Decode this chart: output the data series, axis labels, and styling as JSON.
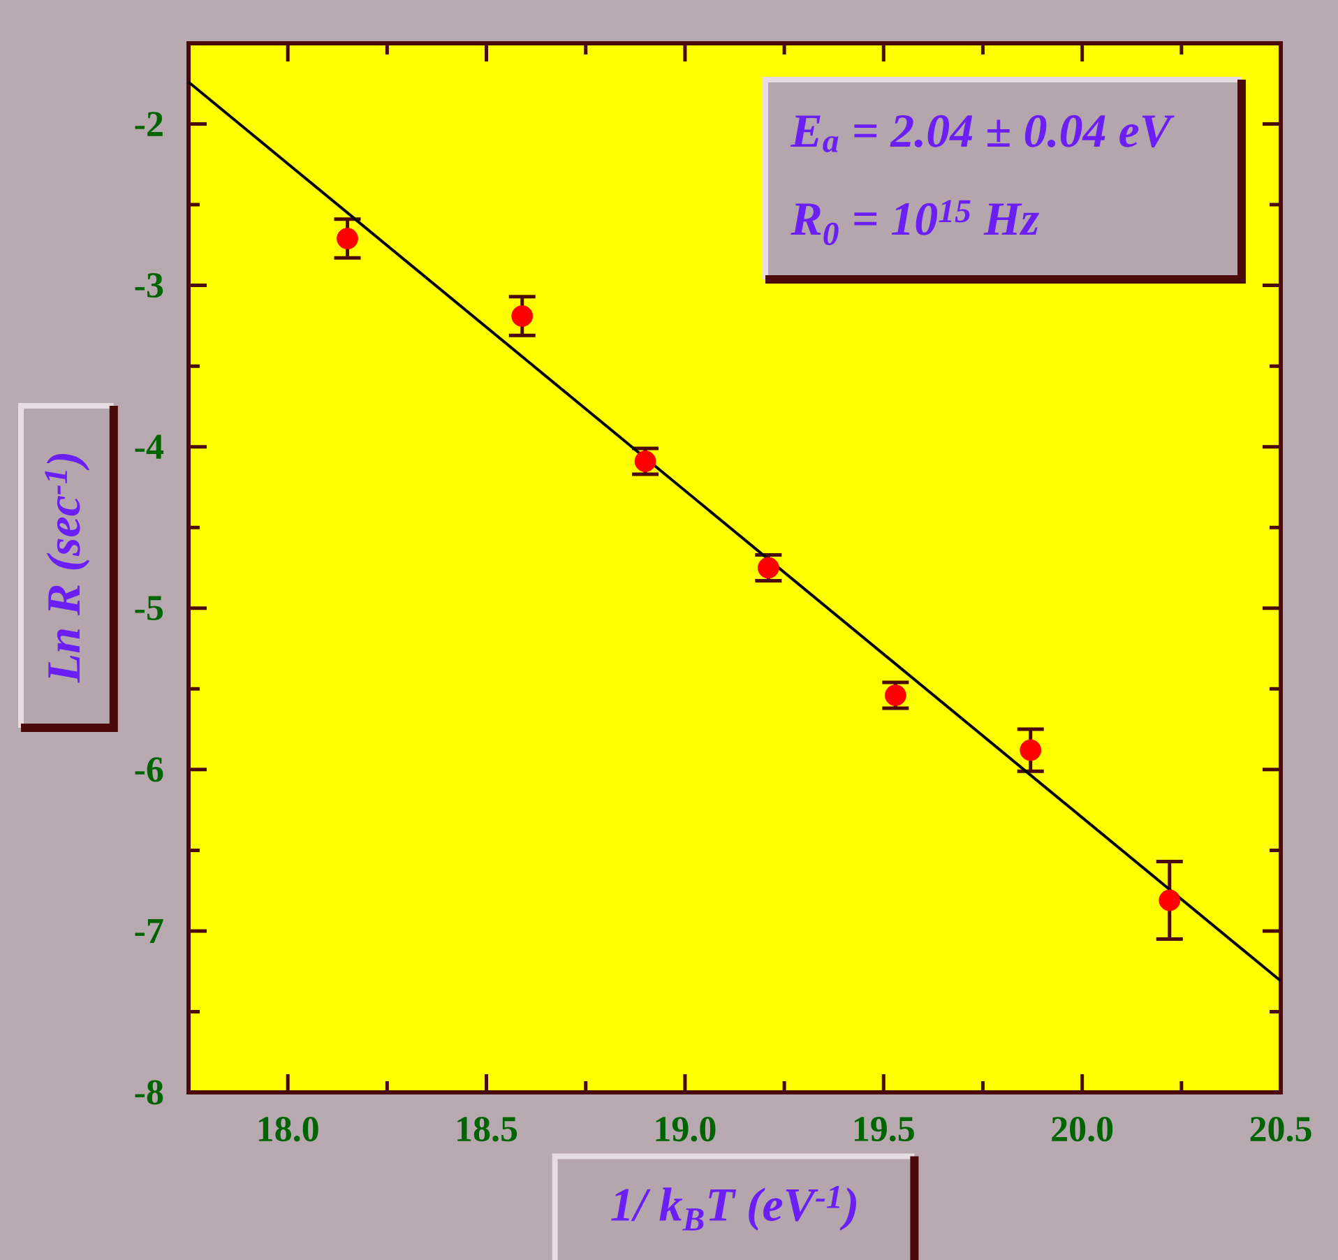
{
  "chart_data": {
    "type": "scatter",
    "xlabel": "1/ k$_{B}$T (eV$^{-1}$)",
    "ylabel": "Ln R (sec$^{-1}$)",
    "annotations": [
      "E$_{a}$ = 2.04 ± 0.04 eV",
      "R$_{0}$ = 10$^{15}$ Hz"
    ],
    "xlim": [
      17.75,
      20.5
    ],
    "ylim": [
      -8,
      -1.5
    ],
    "xticks": [
      {
        "value": 18,
        "label": "18.0"
      },
      18.5,
      {
        "value": 19,
        "label": "19.0"
      },
      19.5,
      {
        "value": 20,
        "label": "20.0"
      },
      20.5
    ],
    "yticks": [
      -8,
      -7,
      -6,
      -5,
      -4,
      -3,
      -2
    ],
    "series": [
      {
        "color": "#ff0000",
        "marker": "circle",
        "x": [
          18.15,
          18.59,
          18.9,
          19.21,
          19.53,
          19.87,
          20.22
        ],
        "values": [
          -2.71,
          -3.19,
          -4.09,
          -4.75,
          -5.54,
          -5.88,
          -6.81
        ],
        "errors": [
          0.12,
          0.12,
          0.08,
          0.08,
          0.08,
          0.13,
          0.24
        ]
      },
      {
        "type": "line",
        "color": "#000000",
        "line_style": "solid",
        "x": [
          17.75,
          20.5
        ],
        "values": [
          -1.74,
          -7.31
        ]
      }
    ]
  }
}
